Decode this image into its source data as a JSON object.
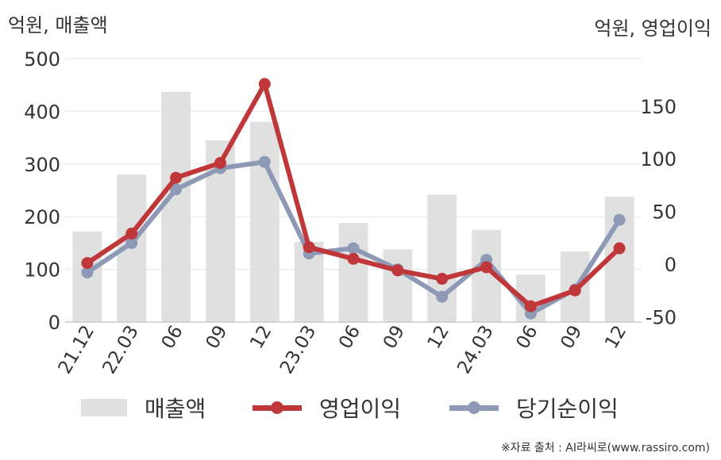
{
  "units": {
    "left": "억원, 매출액",
    "right": "억원, 영업이익"
  },
  "source_note": "※자료 출처 : AI라씨로(www.rassiro.com)",
  "colors": {
    "bar": "#e0e0e0",
    "operating_profit": "#c0373a",
    "net_income": "#8e9ab5",
    "grid": "#e6e6e6",
    "axis": "#c8c8c8"
  },
  "chart_data": {
    "type": "bar",
    "categories": [
      "21.12",
      "22.03",
      "06",
      "09",
      "12",
      "23.03",
      "06",
      "09",
      "12",
      "24.03",
      "06",
      "09",
      "12"
    ],
    "left_axis": {
      "ticks": [
        "0",
        "100",
        "200",
        "300",
        "400",
        "500"
      ],
      "range": [
        0,
        500
      ]
    },
    "right_axis": {
      "ticks": [
        "-50",
        "0",
        "50",
        "100",
        "150"
      ],
      "range": [
        -55,
        195
      ]
    },
    "series": [
      {
        "name": "매출액",
        "type": "bar",
        "axis": "left",
        "values": [
          172,
          280,
          437,
          345,
          380,
          152,
          188,
          138,
          242,
          175,
          90,
          134,
          238
        ]
      },
      {
        "name": "영업이익",
        "type": "line",
        "axis": "right",
        "values": [
          1,
          29,
          82,
          96,
          171,
          16,
          5,
          -6,
          -14,
          -3,
          -40,
          -25,
          15
        ]
      },
      {
        "name": "당기순이익",
        "type": "line",
        "axis": "right",
        "values": [
          -8,
          20,
          71,
          91,
          97,
          10,
          15,
          -5,
          -31,
          4,
          -47,
          -24,
          42
        ]
      }
    ],
    "legend_position": "bottom",
    "grid": true
  }
}
